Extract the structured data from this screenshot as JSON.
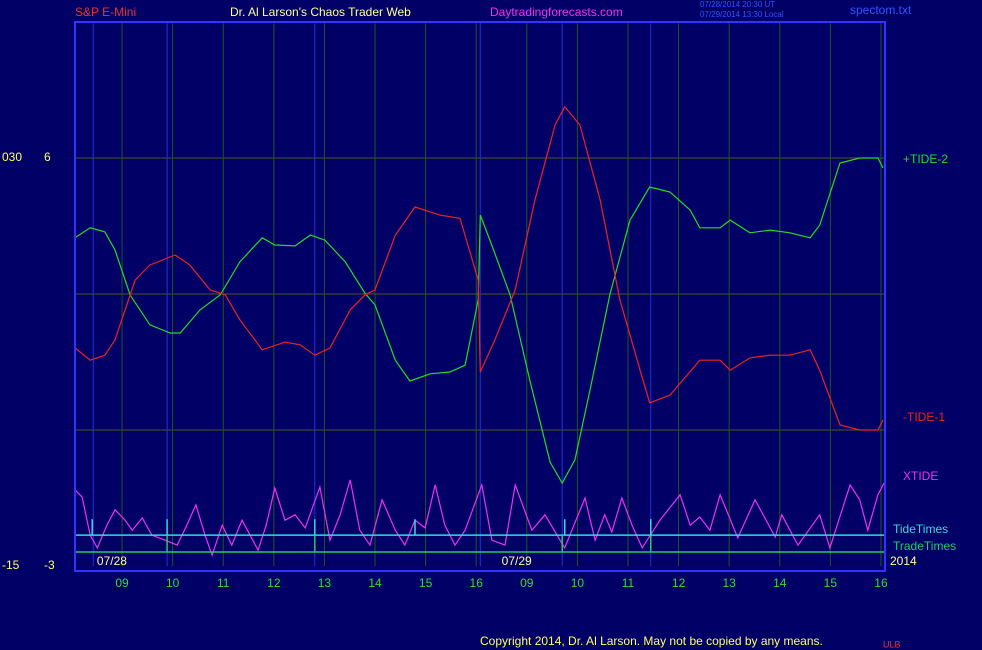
{
  "header": {
    "symbol": "S&P E-Mini",
    "title": "Dr. Al Larson's Chaos Trader Web",
    "site": "Daytradingforecasts.com",
    "time_ut": "07/28/2014 20:30 UT",
    "time_local": "07/29/2014 13:30 Local",
    "file": "spectom.txt"
  },
  "footer": {
    "copyright": "Copyright 2014, Dr. Al Larson. May not be copied by any means.",
    "tag": "ULB"
  },
  "chart_data": {
    "type": "line",
    "xlim": [
      -0.93,
      15.08
    ],
    "ylim": [
      -3,
      9
    ],
    "xticks": [
      {
        "value": 0,
        "label": "09"
      },
      {
        "value": 1,
        "label": "10"
      },
      {
        "value": 2,
        "label": "11"
      },
      {
        "value": 3,
        "label": "12"
      },
      {
        "value": 4,
        "label": "13"
      },
      {
        "value": 5,
        "label": "14"
      },
      {
        "value": 6,
        "label": "15"
      },
      {
        "value": 7,
        "label": "16"
      },
      {
        "value": 8,
        "label": "09"
      },
      {
        "value": 9,
        "label": "10"
      },
      {
        "value": 10,
        "label": "11"
      },
      {
        "value": 11,
        "label": "12"
      },
      {
        "value": 12,
        "label": "13"
      },
      {
        "value": 13,
        "label": "14"
      },
      {
        "value": 14,
        "label": "15"
      },
      {
        "value": 15,
        "label": "16"
      }
    ],
    "yticks": [
      -3,
      6
    ],
    "outer_yticks": [
      {
        "value": 6,
        "label": "030"
      },
      {
        "value": -3,
        "label": "-15"
      }
    ],
    "hgrid": [
      0,
      3,
      6
    ],
    "date_labels": [
      {
        "value": -0.2,
        "label": "07/28"
      },
      {
        "value": 7.8,
        "label": "07/29"
      }
    ],
    "year_label": "2014",
    "event_lines": [
      -0.57,
      0.89,
      3.81,
      7.08,
      8.7,
      10.45
    ],
    "series": [
      {
        "name": "+TIDE-2",
        "color": "#22dd22",
        "x": [
          -0.93,
          -0.63,
          -0.34,
          -0.14,
          0.16,
          0.55,
          0.95,
          1.15,
          1.54,
          1.94,
          2.33,
          2.77,
          3.02,
          3.42,
          3.72,
          4.01,
          4.41,
          4.8,
          5.0,
          5.4,
          5.69,
          6.09,
          6.48,
          6.78,
          7.04,
          7.08,
          7.27,
          7.67,
          8.06,
          8.46,
          8.7,
          8.95,
          9.25,
          9.64,
          10.04,
          10.43,
          10.83,
          11.23,
          11.42,
          11.82,
          12.02,
          12.41,
          12.81,
          13.2,
          13.6,
          13.79,
          14.19,
          14.58,
          14.94,
          15.04
        ],
        "values": [
          4.24,
          4.46,
          4.37,
          3.97,
          2.98,
          2.32,
          2.14,
          2.14,
          2.65,
          2.98,
          3.71,
          4.24,
          4.08,
          4.06,
          4.3,
          4.19,
          3.71,
          3.02,
          2.76,
          1.54,
          1.08,
          1.24,
          1.28,
          1.43,
          2.87,
          4.74,
          4.19,
          2.98,
          1.1,
          -0.71,
          -1.17,
          -0.66,
          0.88,
          2.98,
          4.63,
          5.36,
          5.25,
          4.85,
          4.46,
          4.46,
          4.63,
          4.35,
          4.41,
          4.35,
          4.24,
          4.52,
          5.89,
          6.0,
          6.0,
          5.78
        ]
      },
      {
        "name": "-TIDE-1",
        "color": "#ee2222",
        "x": [
          -0.93,
          -0.63,
          -0.34,
          -0.14,
          0.26,
          0.55,
          1.05,
          1.34,
          1.74,
          2.04,
          2.33,
          2.77,
          3.22,
          3.52,
          3.81,
          4.11,
          4.51,
          4.8,
          5.0,
          5.4,
          5.79,
          6.28,
          6.68,
          7.04,
          7.08,
          7.37,
          7.77,
          8.16,
          8.56,
          8.75,
          9.05,
          9.45,
          9.84,
          10.24,
          10.43,
          10.83,
          11.42,
          11.82,
          12.02,
          12.41,
          12.81,
          13.2,
          13.6,
          13.79,
          14.19,
          14.58,
          14.94,
          15.04
        ],
        "values": [
          1.81,
          1.54,
          1.65,
          1.99,
          3.31,
          3.64,
          3.86,
          3.64,
          3.09,
          2.98,
          2.43,
          1.77,
          1.94,
          1.88,
          1.65,
          1.81,
          2.65,
          2.98,
          3.09,
          4.3,
          4.92,
          4.74,
          4.67,
          3.31,
          1.28,
          1.99,
          3.09,
          5.07,
          6.73,
          7.13,
          6.73,
          5.07,
          2.87,
          1.32,
          0.6,
          0.77,
          1.54,
          1.54,
          1.32,
          1.59,
          1.65,
          1.65,
          1.77,
          1.32,
          0.11,
          0.0,
          0.0,
          0.22
        ]
      },
      {
        "name": "XTIDE",
        "color": "#ee33ee",
        "x": [
          -0.93,
          -0.79,
          -0.63,
          -0.49,
          -0.3,
          -0.14,
          0.06,
          0.2,
          0.4,
          0.59,
          0.85,
          1.09,
          1.28,
          1.46,
          1.64,
          1.78,
          1.98,
          2.17,
          2.37,
          2.69,
          2.85,
          3.02,
          3.22,
          3.42,
          3.62,
          3.91,
          4.11,
          4.31,
          4.51,
          4.7,
          4.9,
          5.14,
          5.4,
          5.59,
          5.79,
          5.99,
          6.19,
          6.38,
          6.58,
          6.78,
          7.11,
          7.31,
          7.57,
          7.77,
          8.1,
          8.36,
          8.75,
          9.15,
          9.35,
          9.54,
          9.68,
          9.88,
          10.08,
          10.28,
          10.63,
          11.03,
          11.23,
          11.42,
          11.62,
          11.82,
          12.17,
          12.51,
          12.91,
          13.04,
          13.36,
          13.79,
          13.99,
          14.39,
          14.58,
          14.74,
          14.94,
          15.06
        ],
        "values": [
          -1.32,
          -1.48,
          -2.32,
          -2.6,
          -2.1,
          -1.76,
          -1.99,
          -2.21,
          -1.94,
          -2.32,
          -2.43,
          -2.54,
          -2.1,
          -1.65,
          -2.32,
          -2.76,
          -2.1,
          -2.54,
          -1.99,
          -2.65,
          -2.1,
          -1.28,
          -1.99,
          -1.87,
          -2.16,
          -1.26,
          -2.43,
          -1.87,
          -1.1,
          -2.21,
          -2.54,
          -1.54,
          -2.21,
          -2.54,
          -1.99,
          -2.16,
          -1.21,
          -2.1,
          -2.54,
          -2.21,
          -1.21,
          -2.43,
          -2.54,
          -1.21,
          -2.21,
          -1.87,
          -2.6,
          -1.5,
          -2.43,
          -1.87,
          -2.25,
          -1.5,
          -2.1,
          -2.6,
          -1.99,
          -1.43,
          -2.1,
          -1.92,
          -2.21,
          -1.43,
          -2.38,
          -1.54,
          -2.36,
          -1.87,
          -2.54,
          -1.87,
          -2.6,
          -1.21,
          -1.54,
          -2.21,
          -1.43,
          -1.17
        ]
      }
    ],
    "markers": [
      {
        "name": "TideTimes",
        "color": "#33dddd",
        "level": -2.32,
        "x": [
          -0.59,
          0.89,
          3.81,
          5.79,
          8.75,
          10.45
        ]
      },
      {
        "name": "TradeTimes",
        "color": "#22cc66",
        "level": -2.69,
        "x": [
          0.89,
          3.81,
          8.7,
          10.45
        ]
      }
    ]
  }
}
